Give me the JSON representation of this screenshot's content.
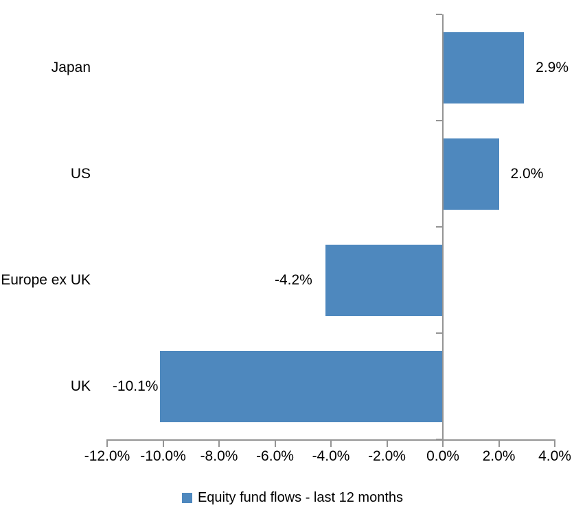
{
  "chart_data": {
    "type": "bar",
    "orientation": "horizontal",
    "title": "",
    "categories": [
      "Japan",
      "US",
      "Europe ex UK",
      "UK"
    ],
    "values": [
      2.9,
      2.0,
      -4.2,
      -10.1
    ],
    "value_labels": [
      "2.9%",
      "2.0%",
      "-4.2%",
      "-10.1%"
    ],
    "xlabel": "",
    "ylabel": "",
    "xlim": [
      -12,
      4
    ],
    "x_ticks": [
      -12,
      -10,
      -8,
      -6,
      -4,
      -2,
      0,
      2,
      4
    ],
    "x_tick_labels": [
      "-12.0%",
      "-10.0%",
      "-8.0%",
      "-6.0%",
      "-4.0%",
      "-2.0%",
      "0.0%",
      "2.0%",
      "4.0%"
    ],
    "grid": false,
    "legend": {
      "position": "bottom",
      "marker": "square",
      "label": "Equity fund flows - last 12 months"
    },
    "colors": {
      "bar": "#4e88be",
      "axis": "#949494",
      "text": "#000000",
      "background": "#ffffff"
    }
  }
}
